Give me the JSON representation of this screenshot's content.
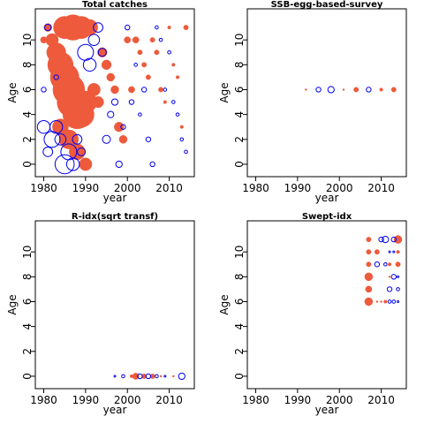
{
  "chart_data": [
    {
      "type": "scatter",
      "title": "Total catches",
      "xlabel": "year",
      "ylabel": "Age",
      "xlim": [
        1978,
        2016
      ],
      "ylim": [
        -1,
        12.5
      ],
      "xticks": [
        1980,
        1990,
        2000,
        2010
      ],
      "yticks": [
        0,
        2,
        4,
        6,
        8,
        10
      ],
      "series": [
        {
          "color": "#EE5A3C",
          "points": [
            [
              1980,
              10,
              4
            ],
            [
              1981,
              11,
              5
            ],
            [
              1982,
              10,
              8
            ],
            [
              1983,
              9,
              12
            ],
            [
              1984,
              8,
              16
            ],
            [
              1985,
              7,
              18
            ],
            [
              1986,
              6,
              20
            ],
            [
              1987,
              5,
              20
            ],
            [
              1988,
              4,
              18
            ],
            [
              1989,
              4,
              16
            ],
            [
              1990,
              5,
              14
            ],
            [
              1985,
              11,
              14
            ],
            [
              1987,
              11,
              16
            ],
            [
              1989,
              11,
              14
            ],
            [
              1991,
              11,
              10
            ],
            [
              1984,
              3,
              10
            ],
            [
              1986,
              2,
              12
            ],
            [
              1988,
              1,
              10
            ],
            [
              1990,
              0,
              8
            ],
            [
              1992,
              6,
              8
            ],
            [
              1993,
              5,
              7
            ],
            [
              1994,
              9,
              6
            ],
            [
              1995,
              8,
              6
            ],
            [
              1996,
              7,
              5
            ],
            [
              1997,
              6,
              5
            ],
            [
              1998,
              3,
              6
            ],
            [
              1999,
              2,
              5
            ],
            [
              2000,
              10,
              4
            ],
            [
              2001,
              6,
              4
            ],
            [
              2002,
              10,
              4
            ],
            [
              2003,
              9,
              3
            ],
            [
              2004,
              8,
              3
            ],
            [
              2005,
              7,
              3
            ],
            [
              2006,
              10,
              3
            ],
            [
              2007,
              9,
              3
            ],
            [
              2008,
              6,
              3
            ],
            [
              2009,
              5,
              2
            ],
            [
              2010,
              11,
              2
            ],
            [
              2011,
              8,
              2
            ],
            [
              2012,
              7,
              2
            ],
            [
              2013,
              3,
              2
            ],
            [
              2014,
              11,
              3
            ]
          ]
        },
        {
          "color": "#0000EE",
          "points": [
            [
              1980,
              3,
              8
            ],
            [
              1981,
              1,
              6
            ],
            [
              1982,
              2,
              10
            ],
            [
              1983,
              3,
              8
            ],
            [
              1984,
              2,
              7
            ],
            [
              1985,
              0,
              12
            ],
            [
              1986,
              1,
              10
            ],
            [
              1987,
              0,
              8
            ],
            [
              1988,
              2,
              6
            ],
            [
              1989,
              1,
              5
            ],
            [
              1990,
              9,
              10
            ],
            [
              1991,
              8,
              8
            ],
            [
              1992,
              10,
              7
            ],
            [
              1993,
              11,
              6
            ],
            [
              1994,
              9,
              5
            ],
            [
              1995,
              2,
              5
            ],
            [
              1996,
              4,
              4
            ],
            [
              1997,
              5,
              4
            ],
            [
              1998,
              0,
              4
            ],
            [
              1999,
              3,
              3
            ],
            [
              2000,
              11,
              3
            ],
            [
              2001,
              5,
              3
            ],
            [
              2002,
              8,
              2
            ],
            [
              2003,
              4,
              2
            ],
            [
              2004,
              6,
              3
            ],
            [
              2005,
              2,
              3
            ],
            [
              2006,
              0,
              3
            ],
            [
              2007,
              11,
              2
            ],
            [
              2008,
              10,
              2
            ],
            [
              2009,
              6,
              2
            ],
            [
              2010,
              9,
              2
            ],
            [
              2011,
              5,
              2
            ],
            [
              2012,
              4,
              2
            ],
            [
              2013,
              2,
              2
            ],
            [
              2014,
              1,
              2
            ],
            [
              1981,
              11,
              4
            ],
            [
              1983,
              7,
              3
            ],
            [
              1980,
              6,
              3
            ]
          ]
        }
      ]
    },
    {
      "type": "scatter",
      "title": "SSB-egg-based-survey",
      "xlabel": "year",
      "ylabel": "Age",
      "xlim": [
        1978,
        2016
      ],
      "ylim": [
        -1,
        12.5
      ],
      "xticks": [
        1980,
        1990,
        2000,
        2010
      ],
      "yticks": [
        0,
        2,
        4,
        6,
        8,
        10
      ],
      "series": [
        {
          "color": "#EE5A3C",
          "points": [
            [
              1992,
              6,
              1
            ],
            [
              2001,
              6,
              0.5
            ],
            [
              2004,
              6,
              3
            ],
            [
              2010,
              6,
              2
            ],
            [
              2013,
              6,
              3
            ]
          ]
        },
        {
          "color": "#0000EE",
          "points": [
            [
              1995,
              6,
              3
            ],
            [
              1998,
              6,
              4
            ],
            [
              2007,
              6,
              3
            ]
          ]
        }
      ]
    },
    {
      "type": "scatter",
      "title": "R-idx(sqrt transf)",
      "xlabel": "year",
      "ylabel": "Age",
      "xlim": [
        1978,
        2016
      ],
      "ylim": [
        -1,
        12.5
      ],
      "xticks": [
        1980,
        1990,
        2000,
        2010
      ],
      "yticks": [
        0,
        2,
        4,
        6,
        8,
        10
      ],
      "series": [
        {
          "color": "#EE5A3C",
          "points": [
            [
              2001,
              0,
              2
            ],
            [
              2002,
              0,
              4
            ],
            [
              2004,
              0,
              3
            ],
            [
              2006,
              0,
              3
            ],
            [
              2008,
              0,
              1
            ],
            [
              2011,
              0,
              1
            ]
          ]
        },
        {
          "color": "#0000EE",
          "points": [
            [
              1997,
              0,
              1
            ],
            [
              1999,
              0,
              2
            ],
            [
              2003,
              0,
              3
            ],
            [
              2005,
              0,
              3
            ],
            [
              2007,
              0,
              2
            ],
            [
              2009,
              0,
              1
            ],
            [
              2013,
              0,
              4
            ]
          ]
        }
      ]
    },
    {
      "type": "scatter",
      "title": "Swept-idx",
      "xlabel": "year",
      "ylabel": "Age",
      "xlim": [
        1978,
        2016
      ],
      "ylim": [
        -1,
        12.5
      ],
      "xticks": [
        1980,
        1990,
        2000,
        2010
      ],
      "yticks": [
        0,
        2,
        4,
        6,
        8,
        10
      ],
      "series": [
        {
          "color": "#EE5A3C",
          "points": [
            [
              2007,
              6,
              5
            ],
            [
              2007,
              7,
              4
            ],
            [
              2007,
              8,
              5
            ],
            [
              2007,
              9,
              3
            ],
            [
              2007,
              10,
              3
            ],
            [
              2007,
              11,
              3
            ],
            [
              2009,
              6,
              1
            ],
            [
              2009,
              10,
              3
            ],
            [
              2010,
              6,
              1
            ],
            [
              2011,
              6,
              2
            ],
            [
              2012,
              8,
              1
            ],
            [
              2012,
              9,
              2
            ],
            [
              2014,
              9,
              3
            ],
            [
              2014,
              10,
              2
            ],
            [
              2014,
              11,
              5
            ]
          ]
        },
        {
          "color": "#0000EE",
          "points": [
            [
              2009,
              9,
              3
            ],
            [
              2010,
              11,
              3
            ],
            [
              2011,
              9,
              2
            ],
            [
              2011,
              11,
              4
            ],
            [
              2012,
              7,
              3
            ],
            [
              2012,
              6,
              2
            ],
            [
              2013,
              8,
              3
            ],
            [
              2013,
              11,
              3
            ],
            [
              2013,
              6,
              2
            ],
            [
              2014,
              7,
              2
            ],
            [
              2014,
              8,
              1
            ],
            [
              2014,
              6,
              1
            ],
            [
              2012,
              10,
              1
            ],
            [
              2013,
              10,
              1
            ]
          ]
        }
      ]
    }
  ]
}
